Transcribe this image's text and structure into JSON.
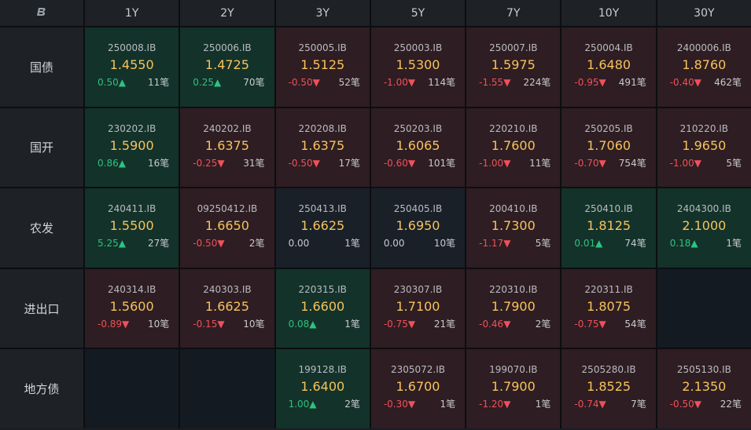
{
  "header": {
    "corner_icon": "logo-b-icon",
    "tenors": [
      "1Y",
      "2Y",
      "3Y",
      "5Y",
      "7Y",
      "10Y",
      "30Y"
    ]
  },
  "rows": [
    {
      "label": "国债",
      "cells": [
        {
          "code": "250008.IB",
          "yield": "1.4550",
          "change": "0.50▲",
          "count": "11笔",
          "dir": "up"
        },
        {
          "code": "250006.IB",
          "yield": "1.4725",
          "change": "0.25▲",
          "count": "70笔",
          "dir": "up"
        },
        {
          "code": "250005.IB",
          "yield": "1.5125",
          "change": "-0.50▼",
          "count": "52笔",
          "dir": "down"
        },
        {
          "code": "250003.IB",
          "yield": "1.5300",
          "change": "-1.00▼",
          "count": "114笔",
          "dir": "down"
        },
        {
          "code": "250007.IB",
          "yield": "1.5975",
          "change": "-1.55▼",
          "count": "224笔",
          "dir": "down"
        },
        {
          "code": "250004.IB",
          "yield": "1.6480",
          "change": "-0.95▼",
          "count": "491笔",
          "dir": "down"
        },
        {
          "code": "2400006.IB",
          "yield": "1.8760",
          "change": "-0.40▼",
          "count": "462笔",
          "dir": "down"
        }
      ]
    },
    {
      "label": "国开",
      "cells": [
        {
          "code": "230202.IB",
          "yield": "1.5900",
          "change": "0.86▲",
          "count": "16笔",
          "dir": "up"
        },
        {
          "code": "240202.IB",
          "yield": "1.6375",
          "change": "-0.25▼",
          "count": "31笔",
          "dir": "down"
        },
        {
          "code": "220208.IB",
          "yield": "1.6375",
          "change": "-0.50▼",
          "count": "17笔",
          "dir": "down"
        },
        {
          "code": "250203.IB",
          "yield": "1.6065",
          "change": "-0.60▼",
          "count": "101笔",
          "dir": "down"
        },
        {
          "code": "220210.IB",
          "yield": "1.7600",
          "change": "-1.00▼",
          "count": "11笔",
          "dir": "down"
        },
        {
          "code": "250205.IB",
          "yield": "1.7060",
          "change": "-0.70▼",
          "count": "754笔",
          "dir": "down"
        },
        {
          "code": "210220.IB",
          "yield": "1.9650",
          "change": "-1.00▼",
          "count": "5笔",
          "dir": "down"
        }
      ]
    },
    {
      "label": "农发",
      "cells": [
        {
          "code": "240411.IB",
          "yield": "1.5500",
          "change": "5.25▲",
          "count": "27笔",
          "dir": "up"
        },
        {
          "code": "09250412.IB",
          "yield": "1.6650",
          "change": "-0.50▼",
          "count": "2笔",
          "dir": "down"
        },
        {
          "code": "250413.IB",
          "yield": "1.6625",
          "change": "0.00",
          "count": "1笔",
          "dir": "flat"
        },
        {
          "code": "250405.IB",
          "yield": "1.6950",
          "change": "0.00",
          "count": "10笔",
          "dir": "flat"
        },
        {
          "code": "200410.IB",
          "yield": "1.7300",
          "change": "-1.17▼",
          "count": "5笔",
          "dir": "down"
        },
        {
          "code": "250410.IB",
          "yield": "1.8125",
          "change": "0.01▲",
          "count": "74笔",
          "dir": "up"
        },
        {
          "code": "2404300.IB",
          "yield": "2.1000",
          "change": "0.18▲",
          "count": "1笔",
          "dir": "up"
        }
      ]
    },
    {
      "label": "进出口",
      "cells": [
        {
          "code": "240314.IB",
          "yield": "1.5600",
          "change": "-0.89▼",
          "count": "10笔",
          "dir": "down"
        },
        {
          "code": "240303.IB",
          "yield": "1.6625",
          "change": "-0.15▼",
          "count": "10笔",
          "dir": "down"
        },
        {
          "code": "220315.IB",
          "yield": "1.6600",
          "change": "0.08▲",
          "count": "1笔",
          "dir": "up"
        },
        {
          "code": "230307.IB",
          "yield": "1.7100",
          "change": "-0.75▼",
          "count": "21笔",
          "dir": "down"
        },
        {
          "code": "220310.IB",
          "yield": "1.7900",
          "change": "-0.46▼",
          "count": "2笔",
          "dir": "down"
        },
        {
          "code": "220311.IB",
          "yield": "1.8075",
          "change": "-0.75▼",
          "count": "54笔",
          "dir": "down"
        },
        null
      ]
    },
    {
      "label": "地方债",
      "cells": [
        null,
        null,
        {
          "code": "199128.IB",
          "yield": "1.6400",
          "change": "1.00▲",
          "count": "2笔",
          "dir": "up"
        },
        {
          "code": "2305072.IB",
          "yield": "1.6700",
          "change": "-0.30▼",
          "count": "1笔",
          "dir": "down"
        },
        {
          "code": "199070.IB",
          "yield": "1.7900",
          "change": "-1.20▼",
          "count": "1笔",
          "dir": "down"
        },
        {
          "code": "2505280.IB",
          "yield": "1.8525",
          "change": "-0.74▼",
          "count": "7笔",
          "dir": "down"
        },
        {
          "code": "2505130.IB",
          "yield": "2.1350",
          "change": "-0.50▼",
          "count": "22笔",
          "dir": "down"
        }
      ]
    }
  ],
  "colors": {
    "up_bg": "#13322a",
    "down_bg": "#2e1d22",
    "flat_bg": "#1a2028",
    "yield_text": "#f6c35c",
    "up_text": "#2ec27e",
    "down_text": "#f0505a"
  }
}
